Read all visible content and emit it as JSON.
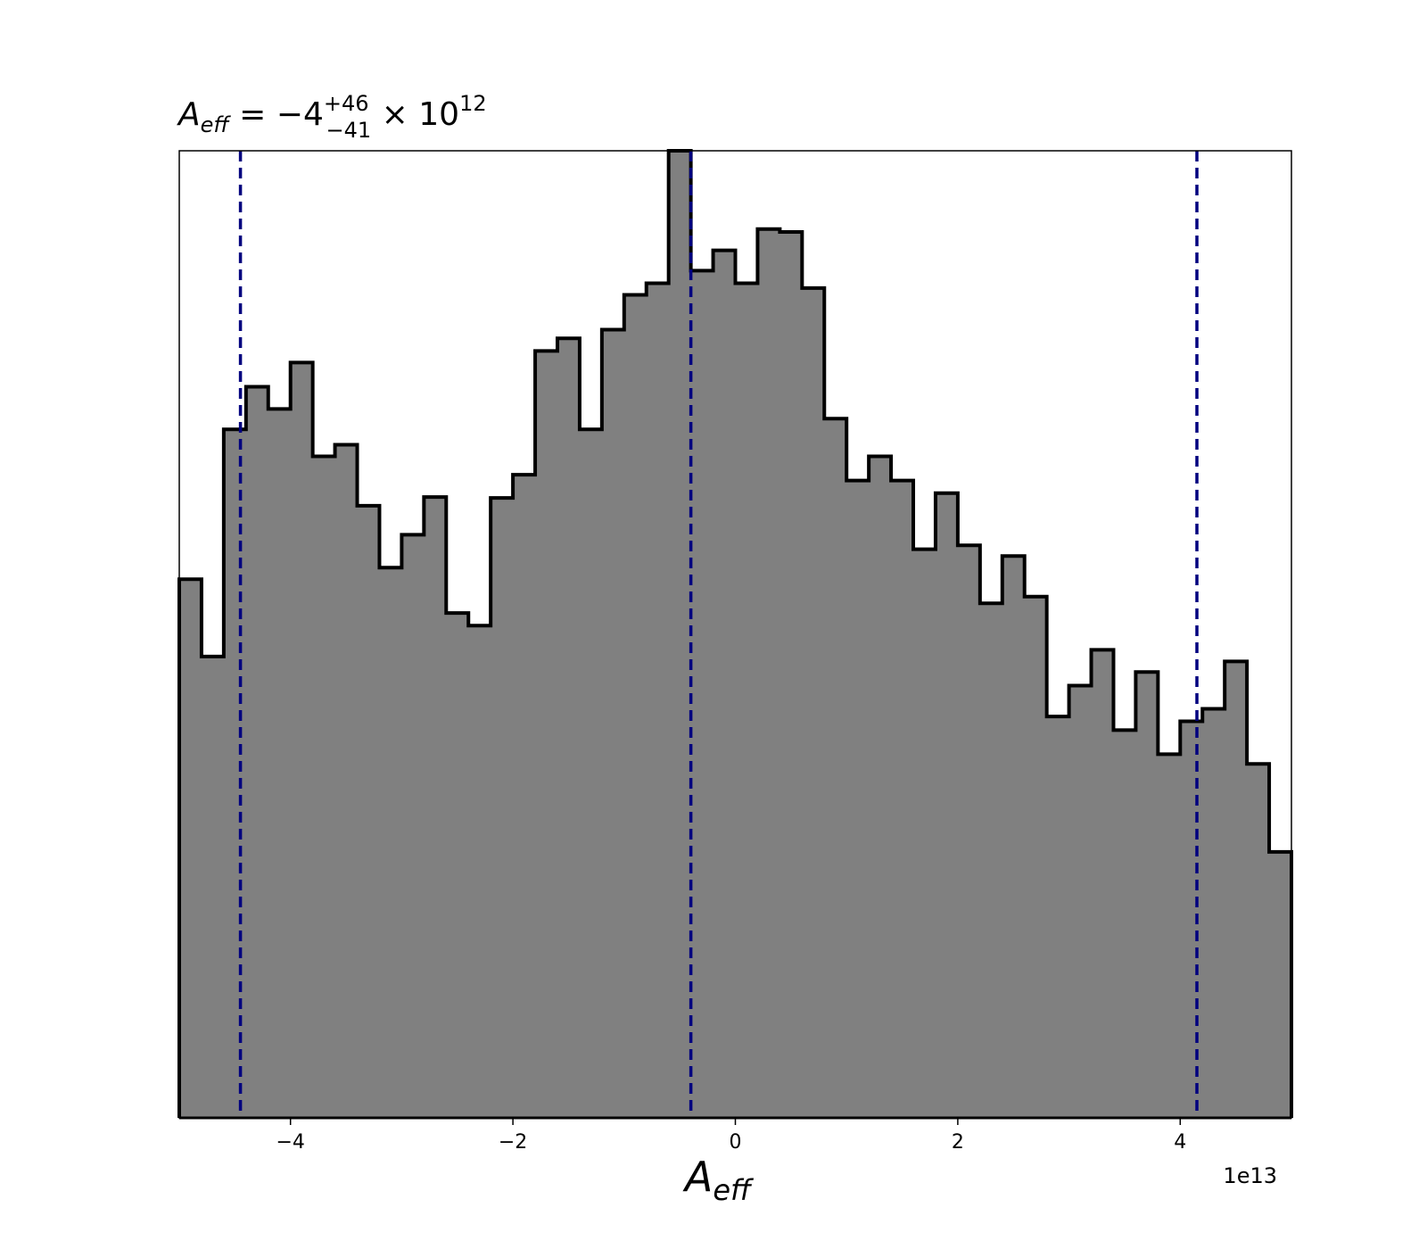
{
  "chart_data": {
    "type": "histogram",
    "title": {
      "symbol": "A",
      "subscript": "eff",
      "equals": "=",
      "median": "−4",
      "upper": "+46",
      "lower": "−41",
      "times": "×",
      "base": "10",
      "exponent": "12"
    },
    "xlabel": {
      "symbol": "A",
      "subscript": "eff"
    },
    "x_offset_label": "1e13",
    "xlim": [
      -5.0,
      5.0
    ],
    "ylim": [
      0,
      1.0
    ],
    "xticks": [
      -4,
      -2,
      0,
      2,
      4
    ],
    "xtick_labels": [
      "−4",
      "−2",
      "0",
      "2",
      "4"
    ],
    "yticks_shown": false,
    "bin_edges": [
      -5.0,
      -4.8,
      -4.6,
      -4.4,
      -4.2,
      -4.0,
      -3.8,
      -3.6,
      -3.4,
      -3.2,
      -3.0,
      -2.8,
      -2.6,
      -2.4,
      -2.2,
      -2.0,
      -1.8,
      -1.6,
      -1.4,
      -1.2,
      -1.0,
      -0.8,
      -0.6,
      -0.4,
      -0.2,
      0.0,
      0.2,
      0.4,
      0.6,
      0.8,
      1.0,
      1.2,
      1.4,
      1.6,
      1.8,
      2.0,
      2.2,
      2.4,
      2.6,
      2.8,
      3.0,
      3.2,
      3.4,
      3.6,
      3.8,
      4.0,
      4.2,
      4.4,
      4.6,
      4.8,
      5.0
    ],
    "counts": [
      0.557,
      0.477,
      0.712,
      0.756,
      0.733,
      0.781,
      0.684,
      0.696,
      0.633,
      0.569,
      0.603,
      0.642,
      0.522,
      0.509,
      0.641,
      0.665,
      0.793,
      0.806,
      0.712,
      0.815,
      0.851,
      0.863,
      1.0,
      0.876,
      0.897,
      0.863,
      0.919,
      0.916,
      0.858,
      0.723,
      0.659,
      0.684,
      0.659,
      0.588,
      0.646,
      0.592,
      0.532,
      0.581,
      0.539,
      0.415,
      0.447,
      0.484,
      0.401,
      0.461,
      0.376,
      0.41,
      0.423,
      0.472,
      0.366,
      0.275
    ],
    "fill_color": "#808080",
    "edge_color": "#000000",
    "quantile_lines": {
      "color": "#00007f",
      "style": "dashed",
      "x": [
        -4.45,
        -0.4,
        4.15
      ]
    },
    "grid": false
  }
}
